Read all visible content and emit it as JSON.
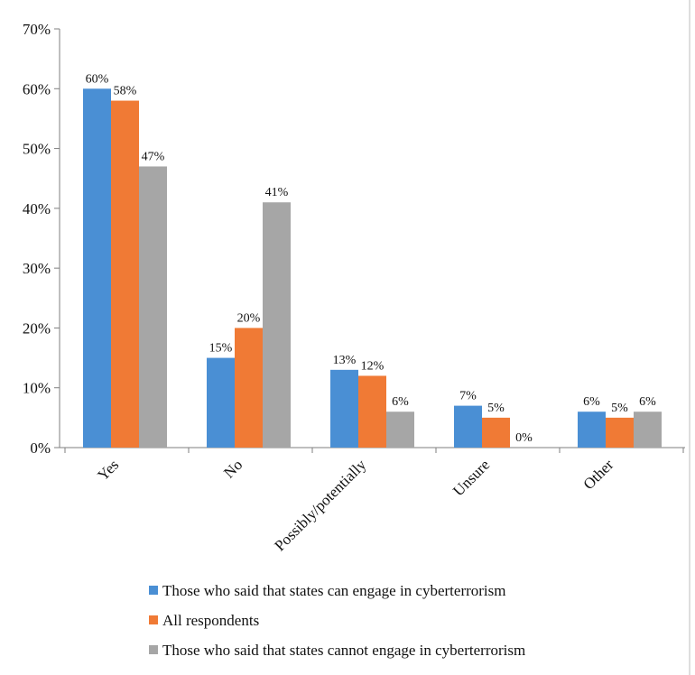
{
  "chart_data": {
    "type": "bar",
    "categories": [
      "Yes",
      "No",
      "Possibly/potentially",
      "Unsure",
      "Other"
    ],
    "series": [
      {
        "name": "Those who said that states can engage in cyberterrorism",
        "color": "#4a8fd4",
        "values": [
          60,
          15,
          13,
          7,
          6
        ],
        "labels": [
          "60%",
          "15%",
          "13%",
          "7%",
          "6%"
        ]
      },
      {
        "name": "All respondents",
        "color": "#f07a35",
        "values": [
          58,
          20,
          12,
          5,
          5
        ],
        "labels": [
          "58%",
          "20%",
          "12%",
          "5%",
          "5%"
        ]
      },
      {
        "name": "Those who said that states cannot engage in cyberterrorism",
        "color": "#a6a6a6",
        "values": [
          47,
          41,
          6,
          0,
          6
        ],
        "labels": [
          "47%",
          "41%",
          "6%",
          "0%",
          "6%"
        ]
      }
    ],
    "ylim": [
      0,
      70
    ],
    "yticks": [
      {
        "value": 0,
        "label": "0%"
      },
      {
        "value": 10,
        "label": "10%"
      },
      {
        "value": 20,
        "label": "20%"
      },
      {
        "value": 30,
        "label": "30%"
      },
      {
        "value": 40,
        "label": "40%"
      },
      {
        "value": 50,
        "label": "50%"
      },
      {
        "value": 60,
        "label": "60%"
      },
      {
        "value": 70,
        "label": "70%"
      }
    ],
    "grid": false,
    "legend_position": "bottom"
  }
}
